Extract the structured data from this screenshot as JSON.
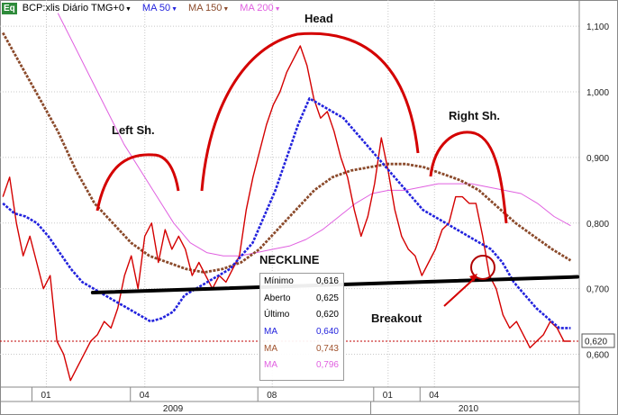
{
  "header": {
    "badge": "Eq",
    "symbol": "BCP:xlis Diário TMG+0",
    "ma1": "MA 50",
    "ma2": "MA 150",
    "ma3": "MA 200"
  },
  "colors": {
    "price": "#d40000",
    "ma50": "#2222dd",
    "ma150": "#8b4a2b",
    "ma200": "#e060e0",
    "neckline": "#000000",
    "arcs": "#d40000",
    "grid": "#c8c8c8",
    "ref_line": "#c00000"
  },
  "annotations": {
    "left_shoulder": "Left Sh.",
    "head": "Head",
    "right_shoulder": "Right Sh.",
    "neckline": "NECKLINE",
    "breakout": "Breakout"
  },
  "tooltip": {
    "rows": [
      {
        "label": "Mínimo",
        "value": "0,616",
        "color": "#000000"
      },
      {
        "label": "Aberto",
        "value": "0,625",
        "color": "#000000"
      },
      {
        "label": "Último",
        "value": "0,620",
        "color": "#000000"
      },
      {
        "label": "MA",
        "value": "0,640",
        "color": "#2222dd"
      },
      {
        "label": "MA",
        "value": "0,743",
        "color": "#a0522d"
      },
      {
        "label": "MA",
        "value": "0,796",
        "color": "#e060e0"
      }
    ]
  },
  "chart_data": {
    "type": "line",
    "title": "BCP:xlis Diário TMG+0",
    "y_ticks": [
      "0,600",
      "0,700",
      "0,800",
      "0,900",
      "1,000",
      "1,100"
    ],
    "y_tick_values": [
      0.6,
      0.7,
      0.8,
      0.9,
      1.0,
      1.1
    ],
    "ylim": [
      0.55,
      1.14
    ],
    "x_month_labels": [
      "01",
      "04",
      "08",
      "01",
      "04"
    ],
    "x_year_labels": [
      "2009",
      "2010"
    ],
    "last_price_label": "0,620",
    "last_price": 0.62,
    "neckline": {
      "from": 0.694,
      "to": 0.718
    },
    "series": [
      {
        "name": "BCP:xlis",
        "values": [
          0.84,
          0.87,
          0.8,
          0.75,
          0.78,
          0.74,
          0.7,
          0.72,
          0.62,
          0.6,
          0.56,
          0.58,
          0.6,
          0.62,
          0.63,
          0.65,
          0.64,
          0.67,
          0.72,
          0.75,
          0.7,
          0.78,
          0.8,
          0.74,
          0.79,
          0.76,
          0.78,
          0.76,
          0.72,
          0.74,
          0.72,
          0.7,
          0.72,
          0.71,
          0.73,
          0.75,
          0.82,
          0.87,
          0.91,
          0.95,
          0.98,
          1.0,
          1.03,
          1.05,
          1.07,
          1.04,
          0.99,
          0.96,
          0.97,
          0.94,
          0.9,
          0.87,
          0.82,
          0.78,
          0.81,
          0.86,
          0.93,
          0.88,
          0.82,
          0.78,
          0.76,
          0.75,
          0.72,
          0.74,
          0.76,
          0.79,
          0.8,
          0.84,
          0.84,
          0.83,
          0.83,
          0.78,
          0.72,
          0.7,
          0.66,
          0.64,
          0.65,
          0.63,
          0.61,
          0.62,
          0.63,
          0.65,
          0.64,
          0.62,
          0.62
        ]
      },
      {
        "name": "MA 50",
        "values": [
          0.83,
          0.815,
          0.81,
          0.8,
          0.78,
          0.755,
          0.73,
          0.71,
          0.7,
          0.69,
          0.68,
          0.67,
          0.66,
          0.65,
          0.655,
          0.665,
          0.69,
          0.7,
          0.71,
          0.72,
          0.73,
          0.75,
          0.77,
          0.81,
          0.85,
          0.9,
          0.95,
          0.99,
          0.98,
          0.97,
          0.96,
          0.94,
          0.92,
          0.9,
          0.88,
          0.86,
          0.84,
          0.82,
          0.81,
          0.8,
          0.79,
          0.78,
          0.77,
          0.76,
          0.74,
          0.71,
          0.69,
          0.67,
          0.655,
          0.64,
          0.64
        ]
      },
      {
        "name": "MA 150",
        "values": [
          1.09,
          1.04,
          0.99,
          0.94,
          0.88,
          0.83,
          0.8,
          0.77,
          0.75,
          0.74,
          0.73,
          0.725,
          0.73,
          0.74,
          0.76,
          0.79,
          0.82,
          0.85,
          0.87,
          0.88,
          0.885,
          0.89,
          0.89,
          0.885,
          0.875,
          0.865,
          0.85,
          0.825,
          0.8,
          0.78,
          0.76,
          0.743
        ]
      },
      {
        "name": "MA 200",
        "values": [
          1.12,
          1.07,
          1.02,
          0.97,
          0.92,
          0.88,
          0.84,
          0.8,
          0.77,
          0.755,
          0.75,
          0.75,
          0.755,
          0.76,
          0.765,
          0.775,
          0.79,
          0.81,
          0.83,
          0.845,
          0.85,
          0.85,
          0.855,
          0.86,
          0.86,
          0.86,
          0.855,
          0.85,
          0.845,
          0.83,
          0.81,
          0.796
        ]
      }
    ]
  }
}
